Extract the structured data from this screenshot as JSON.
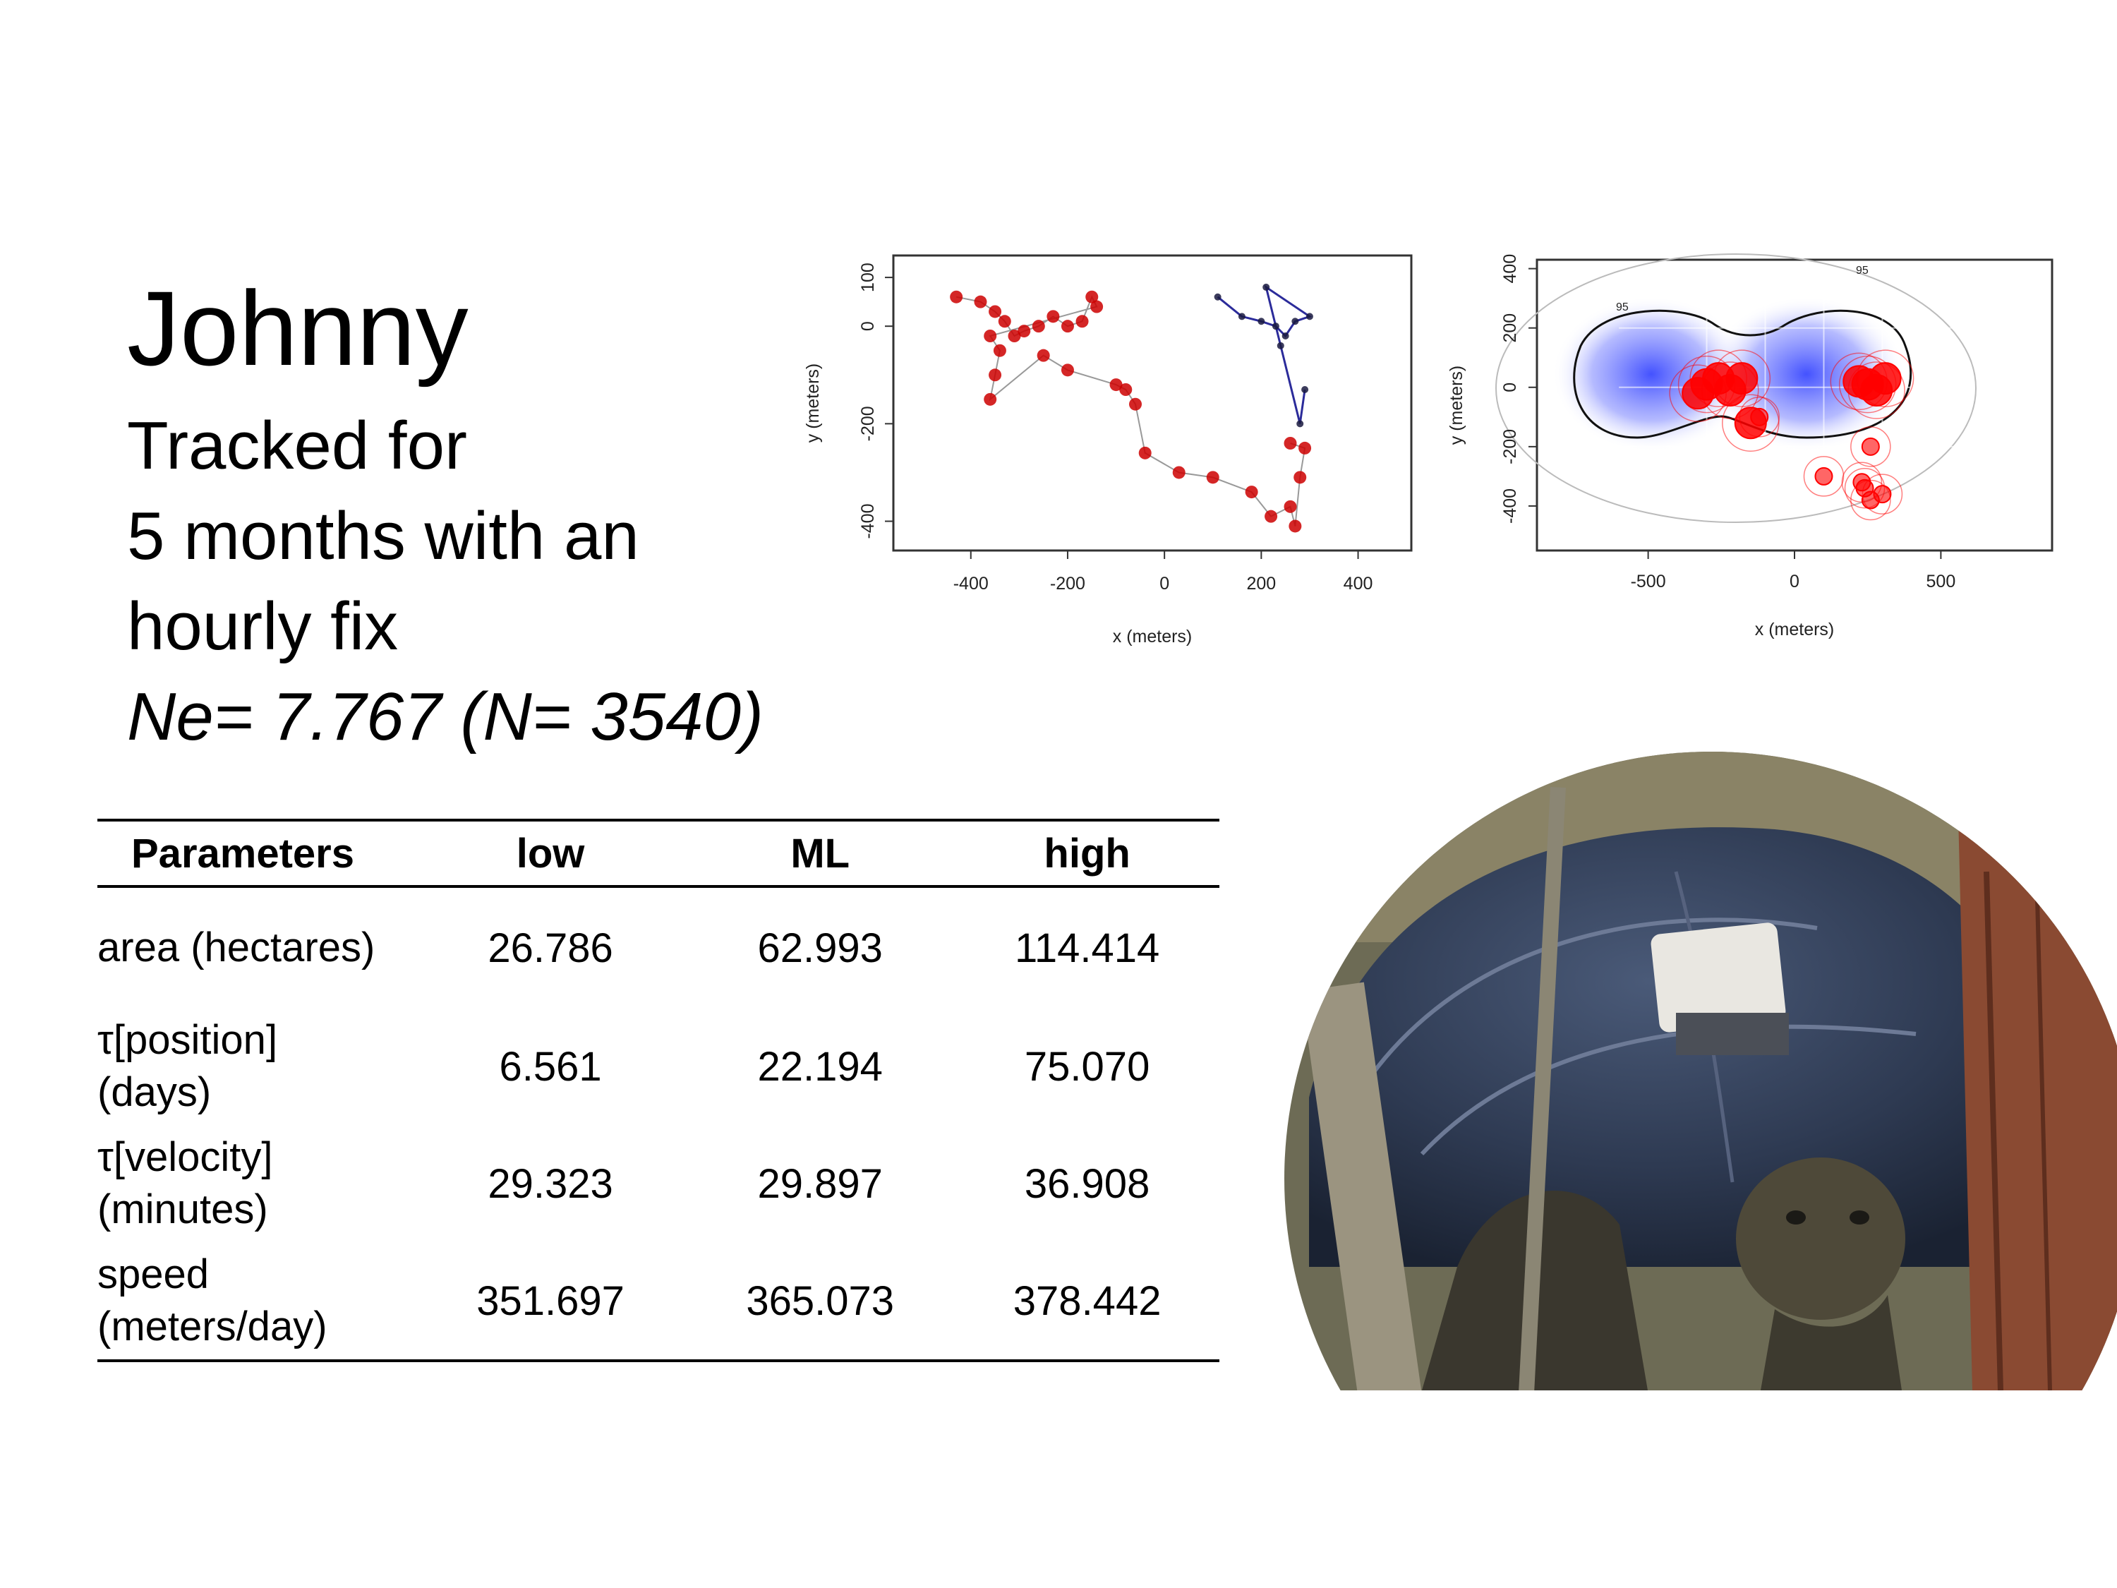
{
  "title": {
    "name": "Johnny",
    "line1": "Tracked for",
    "line2": "5 months with an",
    "line3": "hourly fix",
    "line4": "Ne= 7.767  (N= 3540)"
  },
  "table": {
    "headers": [
      "Parameters",
      "low",
      "ML",
      "high"
    ],
    "rows": [
      {
        "param": [
          "area (hectares)"
        ],
        "low": "26.786",
        "ml": "62.993",
        "high": "114.414"
      },
      {
        "param": [
          "τ[position]",
          "(days)"
        ],
        "low": "6.561",
        "ml": "22.194",
        "high": "75.070"
      },
      {
        "param": [
          "τ[velocity]",
          "(minutes)"
        ],
        "low": "29.323",
        "ml": "29.897",
        "high": "36.908"
      },
      {
        "param": [
          "speed",
          "(meters/day)"
        ],
        "low": "351.697",
        "ml": "365.073",
        "high": "378.442"
      }
    ]
  },
  "chart_data": [
    {
      "type": "scatter",
      "title": "",
      "xlabel": "x (meters)",
      "ylabel": "y (meters)",
      "xlim": [
        -560,
        510
      ],
      "ylim": [
        -460,
        145
      ],
      "xticks": [
        "-400",
        "-200",
        "0",
        "200",
        "400"
      ],
      "yticks": [
        "100",
        "0",
        "-200",
        "-400"
      ],
      "ytick_values": [
        100,
        0,
        -200,
        -400
      ],
      "xtick_values": [
        -400,
        -200,
        0,
        200,
        400
      ],
      "grid": false,
      "colors": {
        "points": "#cc0000",
        "lines": "#2b2b9a",
        "faint": "#999999"
      },
      "series": [
        {
          "values": [
            [
              -430,
              60
            ],
            [
              -380,
              50
            ],
            [
              -350,
              30
            ],
            [
              -330,
              10
            ],
            [
              -310,
              -20
            ],
            [
              -290,
              -10
            ],
            [
              -260,
              0
            ],
            [
              -230,
              20
            ],
            [
              -200,
              0
            ],
            [
              -170,
              10
            ],
            [
              -150,
              60
            ],
            [
              -140,
              40
            ],
            [
              -360,
              -20
            ],
            [
              -340,
              -50
            ],
            [
              -350,
              -100
            ],
            [
              -360,
              -150
            ],
            [
              -250,
              -60
            ],
            [
              -200,
              -90
            ],
            [
              -100,
              -120
            ],
            [
              -80,
              -130
            ],
            [
              -60,
              -160
            ],
            [
              -40,
              -260
            ],
            [
              30,
              -300
            ],
            [
              100,
              -310
            ],
            [
              180,
              -340
            ],
            [
              220,
              -390
            ],
            [
              260,
              -370
            ],
            [
              270,
              -410
            ],
            [
              280,
              -310
            ],
            [
              290,
              -250
            ],
            [
              260,
              -240
            ]
          ]
        },
        {
          "values": [
            [
              110,
              60
            ],
            [
              160,
              20
            ],
            [
              200,
              10
            ],
            [
              230,
              0
            ],
            [
              250,
              -20
            ],
            [
              270,
              10
            ],
            [
              300,
              20
            ],
            [
              210,
              80
            ],
            [
              240,
              -40
            ],
            [
              280,
              -200
            ],
            [
              290,
              -130
            ]
          ]
        }
      ]
    },
    {
      "type": "scatter",
      "title": "",
      "xlabel": "x (meters)",
      "ylabel": "y (meters)",
      "xlim": [
        -880,
        880
      ],
      "ylim": [
        -550,
        430
      ],
      "xticks": [
        "-500",
        "0",
        "500"
      ],
      "xtick_values": [
        -500,
        0,
        500
      ],
      "yticks": [
        "400",
        "200",
        "0",
        "-200",
        "-400"
      ],
      "ytick_values": [
        400,
        200,
        0,
        -200,
        -400
      ],
      "grid": true,
      "contour_labels": [
        "95",
        "95"
      ],
      "colors": {
        "points": "#ff0000",
        "density": "#2f3fff",
        "contour": "#111111"
      },
      "series": [
        {
          "values": [
            [
              -300,
              10
            ],
            [
              -260,
              30
            ],
            [
              -220,
              -10
            ],
            [
              -330,
              -20
            ],
            [
              -180,
              30
            ],
            [
              250,
              10
            ],
            [
              280,
              -10
            ],
            [
              220,
              20
            ],
            [
              310,
              30
            ],
            [
              -150,
              -120
            ],
            [
              -120,
              -100
            ],
            [
              100,
              -300
            ],
            [
              260,
              -200
            ],
            [
              240,
              -340
            ],
            [
              260,
              -380
            ],
            [
              300,
              -360
            ],
            [
              230,
              -320
            ]
          ]
        }
      ]
    }
  ],
  "photo": {
    "subject": "giant tortoise with tracking tag",
    "icon": "tortoise-photo"
  }
}
